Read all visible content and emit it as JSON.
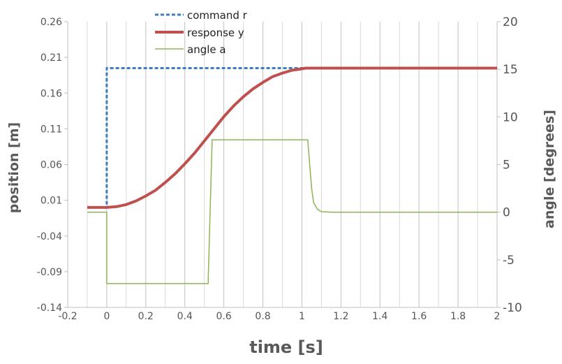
{
  "chart_data": {
    "type": "line",
    "xlabel": "time [s]",
    "ylabel_left": "position [m]",
    "ylabel_right": "angle [degrees]",
    "xlim": [
      -0.2,
      2
    ],
    "ylim_left": [
      -0.14,
      0.26
    ],
    "ylim_right": [
      -10,
      20
    ],
    "x_ticks": [
      "-0.2",
      "0",
      "0.2",
      "0.4",
      "0.6",
      "0.8",
      "1",
      "1.2",
      "1.4",
      "1.6",
      "1.8",
      "2"
    ],
    "y_left_ticks": [
      "0.26",
      "0.21",
      "0.16",
      "0.11",
      "0.06",
      "0.01",
      "-0.04",
      "-0.09",
      "-0.14"
    ],
    "y_right_ticks": [
      "20",
      "15",
      "10",
      "5",
      "0",
      "-5",
      "-10"
    ],
    "grid": "vertical",
    "legend": "top-center",
    "series": [
      {
        "name": "command r",
        "axis": "left",
        "color": "#3d7ebf",
        "style": "dashed",
        "points": [
          [
            -0.1,
            0.0
          ],
          [
            0.0,
            0.0
          ],
          [
            0.0,
            0.195
          ],
          [
            2.0,
            0.195
          ]
        ]
      },
      {
        "name": "response y",
        "axis": "left",
        "color": "#c0504d",
        "style": "solid-thick",
        "points": [
          [
            -0.1,
            0.0
          ],
          [
            0.0,
            0.0
          ],
          [
            0.05,
            0.001
          ],
          [
            0.1,
            0.004
          ],
          [
            0.15,
            0.009
          ],
          [
            0.2,
            0.016
          ],
          [
            0.25,
            0.024
          ],
          [
            0.3,
            0.035
          ],
          [
            0.35,
            0.047
          ],
          [
            0.4,
            0.061
          ],
          [
            0.45,
            0.076
          ],
          [
            0.5,
            0.093
          ],
          [
            0.55,
            0.11
          ],
          [
            0.6,
            0.127
          ],
          [
            0.65,
            0.142
          ],
          [
            0.7,
            0.155
          ],
          [
            0.75,
            0.166
          ],
          [
            0.8,
            0.175
          ],
          [
            0.85,
            0.183
          ],
          [
            0.9,
            0.188
          ],
          [
            0.95,
            0.192
          ],
          [
            1.0,
            0.194
          ],
          [
            1.02,
            0.195
          ],
          [
            2.0,
            0.195
          ]
        ]
      },
      {
        "name": "angle a",
        "axis": "right",
        "color": "#8db356",
        "style": "solid-thin",
        "points": [
          [
            -0.1,
            0.0
          ],
          [
            0.0,
            0.0
          ],
          [
            0.0,
            -7.5
          ],
          [
            0.52,
            -7.5
          ],
          [
            0.52,
            -6.9
          ],
          [
            0.54,
            7.6
          ],
          [
            1.03,
            7.6
          ],
          [
            1.04,
            5.0
          ],
          [
            1.05,
            2.5
          ],
          [
            1.06,
            1.0
          ],
          [
            1.08,
            0.3
          ],
          [
            1.1,
            0.05
          ],
          [
            1.15,
            0.0
          ],
          [
            2.0,
            0.0
          ]
        ]
      }
    ]
  }
}
